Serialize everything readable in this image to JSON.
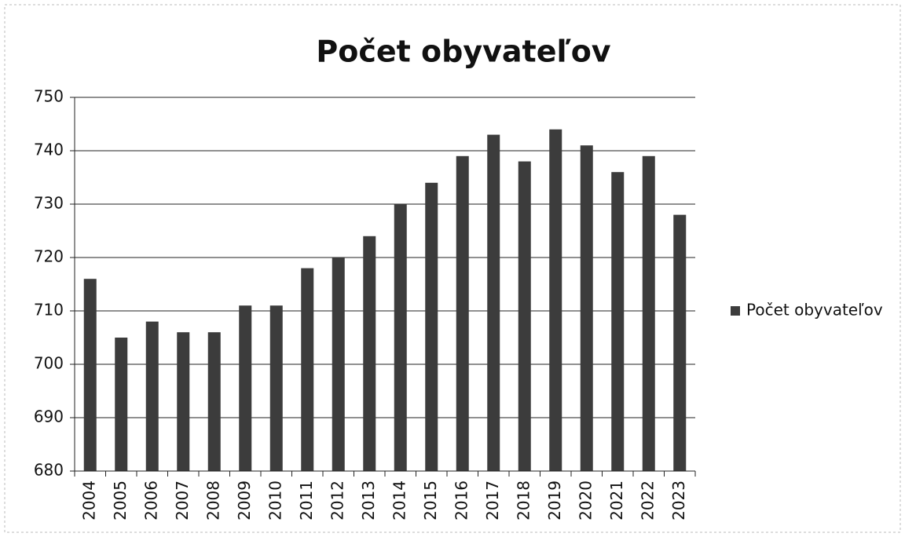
{
  "chart_data": {
    "type": "bar",
    "title": "Počet obyvateľov",
    "categories": [
      "2004",
      "2005",
      "2006",
      "2007",
      "2008",
      "2009",
      "2010",
      "2011",
      "2012",
      "2013",
      "2014",
      "2015",
      "2016",
      "2017",
      "2018",
      "2019",
      "2020",
      "2021",
      "2022",
      "2023"
    ],
    "series": [
      {
        "name": "Počet obyvateľov",
        "color": "#3c3c3c",
        "values": [
          716,
          705,
          708,
          706,
          706,
          711,
          711,
          718,
          720,
          724,
          730,
          734,
          739,
          743,
          738,
          744,
          741,
          736,
          739,
          728
        ]
      }
    ],
    "ylim": [
      680,
      750
    ],
    "yticks": [
      680,
      690,
      700,
      710,
      720,
      730,
      740,
      750
    ],
    "grid": true,
    "legend": "right"
  }
}
